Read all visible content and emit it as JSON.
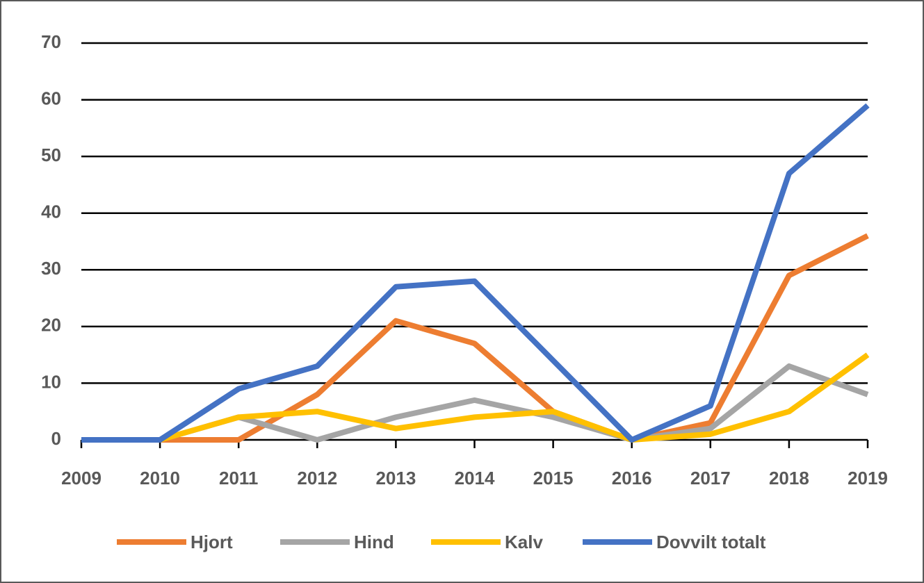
{
  "chart_data": {
    "type": "line",
    "categories": [
      "2009",
      "2010",
      "2011",
      "2012",
      "2013",
      "2014",
      "2015",
      "2016",
      "2017",
      "2018",
      "2019"
    ],
    "series": [
      {
        "name": "Hjort",
        "color": "#ed7d31",
        "values": [
          0,
          0,
          0,
          8,
          21,
          17,
          5,
          0,
          3,
          29,
          36
        ]
      },
      {
        "name": "Hind",
        "color": "#a5a5a5",
        "values": [
          0,
          0,
          4,
          0,
          4,
          7,
          4,
          0,
          2,
          13,
          8
        ]
      },
      {
        "name": "Kalv",
        "color": "#ffc000",
        "values": [
          0,
          0,
          4,
          5,
          2,
          4,
          5,
          0,
          1,
          5,
          15
        ]
      },
      {
        "name": "Dovvilt totalt",
        "color": "#4472c4",
        "values": [
          0,
          0,
          9,
          13,
          27,
          28,
          14,
          0,
          6,
          47,
          59
        ]
      }
    ],
    "ylim": [
      0,
      70
    ],
    "yticks": [
      0,
      10,
      20,
      30,
      40,
      50,
      60,
      70
    ],
    "grid": true,
    "legend": "bottom"
  }
}
